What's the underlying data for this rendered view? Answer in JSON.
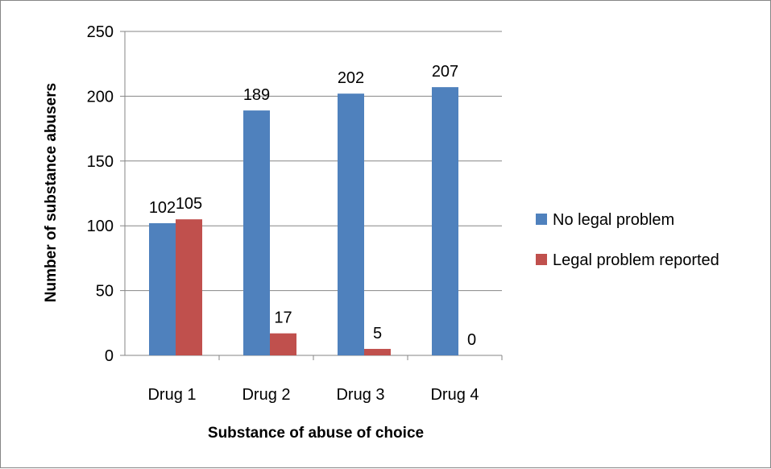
{
  "chart_data": {
    "type": "bar",
    "title": "",
    "xlabel": "Substance of abuse of choice",
    "ylabel": "Number of substance abusers",
    "categories": [
      "Drug 1",
      "Drug 2",
      "Drug 3",
      "Drug 4"
    ],
    "series": [
      {
        "name": "No legal problem",
        "values": [
          102,
          189,
          202,
          207
        ],
        "color": "#4F81BD"
      },
      {
        "name": "Legal problem reported",
        "values": [
          105,
          17,
          5,
          0
        ],
        "color": "#C0504D"
      }
    ],
    "ylim": [
      0,
      250
    ],
    "yticks": [
      0,
      50,
      100,
      150,
      200,
      250
    ],
    "grid": true,
    "legend": "right",
    "data_labels": true
  }
}
